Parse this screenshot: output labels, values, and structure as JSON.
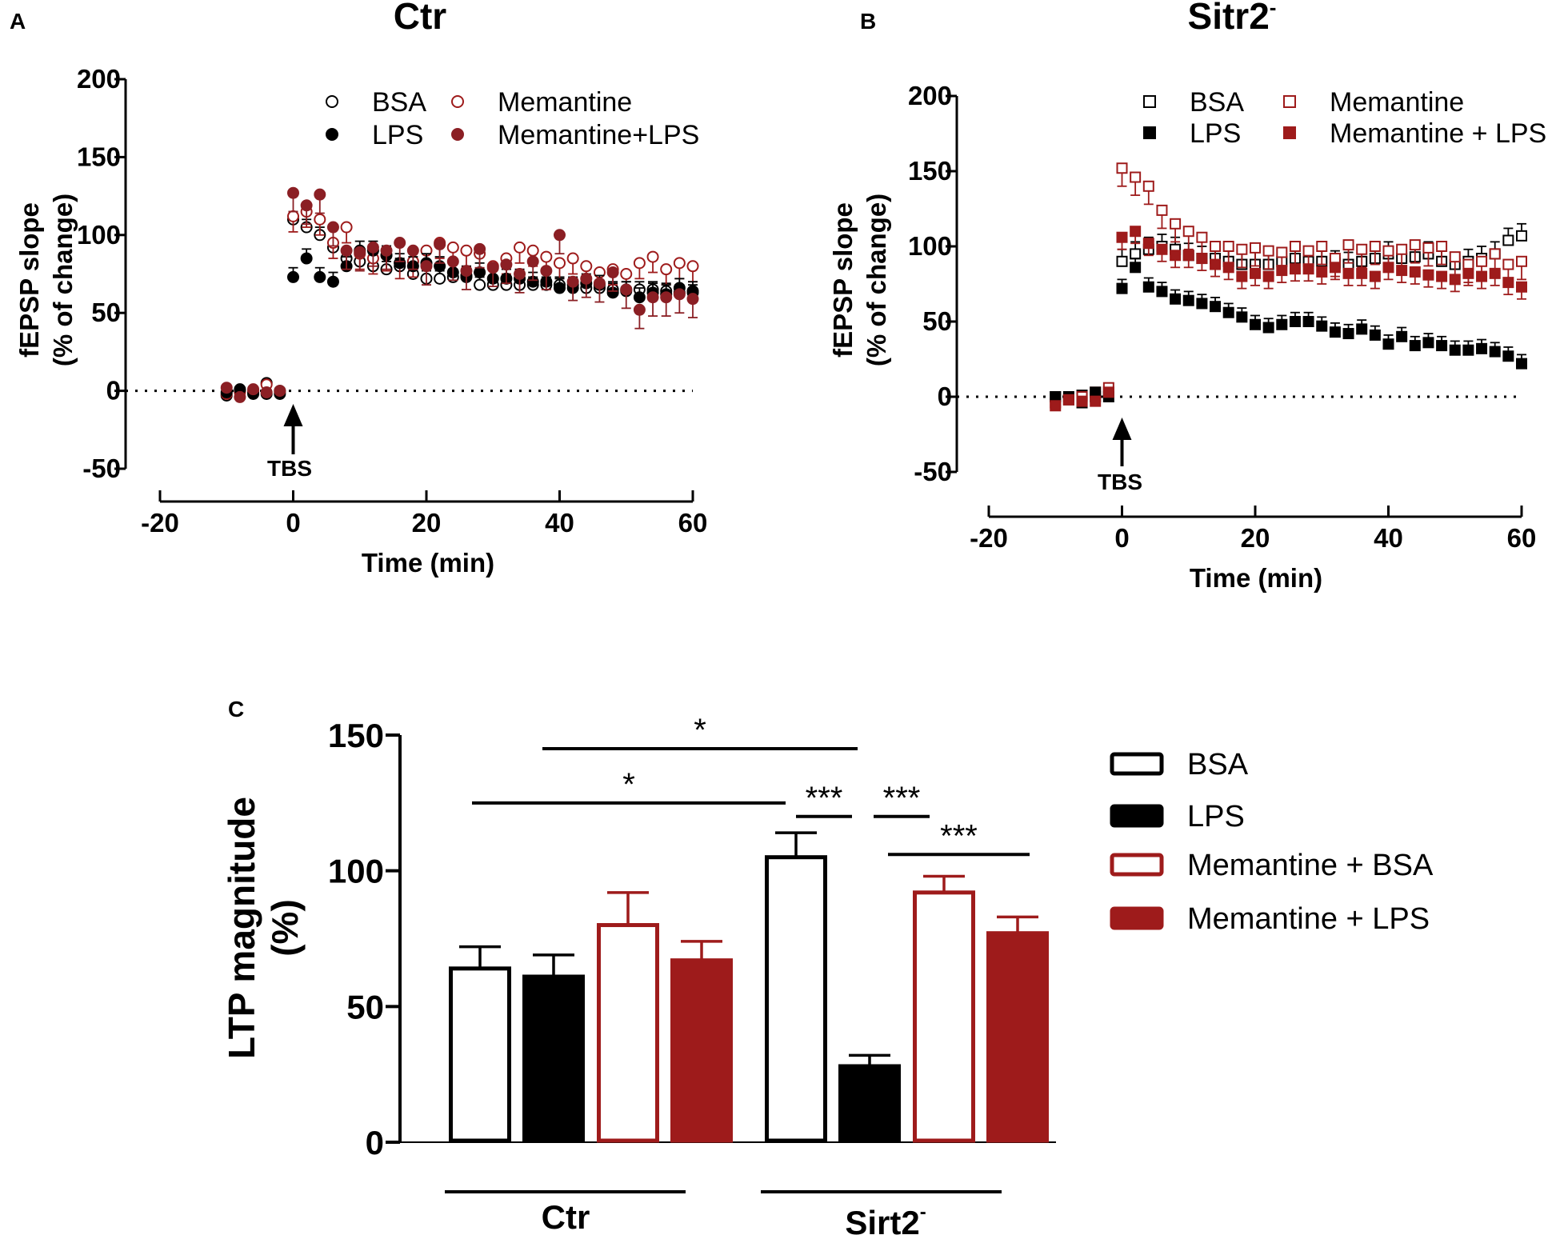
{
  "colors": {
    "black": "#000000",
    "red": "#9e1b1b",
    "darkred": "#8b1f24"
  },
  "panels": {
    "A": {
      "letter": "A",
      "title": "Ctr",
      "arrow_label": "TBS"
    },
    "B": {
      "letter": "B",
      "title": "Sitr2",
      "title_sup": "-",
      "arrow_label": "TBS"
    },
    "C": {
      "letter": "C"
    }
  },
  "chart_data": [
    {
      "id": "A",
      "type": "scatter",
      "title": "Ctr",
      "xlabel": "Time (min)",
      "ylabel": [
        "fEPSP slope",
        "(% of change)"
      ],
      "xlim": [
        -20,
        60
      ],
      "ylim": [
        -50,
        200
      ],
      "xticks": [
        -20,
        0,
        20,
        40,
        60
      ],
      "yticks": [
        -50,
        0,
        50,
        100,
        150,
        200
      ],
      "marker": "circle",
      "annotation": {
        "text": "TBS",
        "x": 0
      },
      "legend": [
        "BSA",
        "Memantine",
        "LPS",
        "Memantine+LPS"
      ],
      "series": [
        {
          "name": "BSA",
          "color": "black",
          "filled": false,
          "x": [
            -10,
            -8,
            -6,
            -4,
            -2,
            0,
            2,
            4,
            6,
            8,
            10,
            12,
            14,
            16,
            18,
            20,
            22,
            24,
            26,
            28,
            30,
            32,
            34,
            36,
            38,
            40,
            42,
            44,
            46,
            48,
            50,
            52,
            54,
            56,
            58,
            60
          ],
          "y": [
            -3,
            0,
            -1,
            5,
            0,
            110,
            105,
            100,
            92,
            85,
            83,
            80,
            78,
            80,
            75,
            72,
            72,
            73,
            73,
            68,
            68,
            68,
            68,
            68,
            68,
            68,
            68,
            66,
            66,
            65,
            65,
            65,
            65,
            64,
            63,
            63
          ],
          "err": 5
        },
        {
          "name": "Memantine",
          "color": "red",
          "filled": false,
          "x": [
            -10,
            -8,
            -6,
            -4,
            -2,
            0,
            2,
            4,
            6,
            8,
            10,
            12,
            14,
            16,
            18,
            20,
            22,
            24,
            26,
            28,
            30,
            32,
            34,
            36,
            38,
            40,
            42,
            44,
            46,
            48,
            50,
            52,
            54,
            56,
            58,
            60
          ],
          "y": [
            -2,
            -1,
            0,
            4,
            -1,
            112,
            115,
            110,
            95,
            105,
            88,
            85,
            87,
            82,
            83,
            90,
            95,
            92,
            90,
            88,
            80,
            85,
            92,
            90,
            86,
            82,
            85,
            80,
            76,
            78,
            75,
            82,
            86,
            78,
            82,
            80
          ],
          "err": 10
        },
        {
          "name": "LPS",
          "color": "black",
          "filled": true,
          "x": [
            -10,
            -8,
            -6,
            -4,
            -2,
            0,
            2,
            4,
            6,
            8,
            10,
            12,
            14,
            16,
            18,
            20,
            22,
            24,
            26,
            28,
            30,
            32,
            34,
            36,
            38,
            40,
            42,
            44,
            46,
            48,
            50,
            52,
            54,
            56,
            58,
            60
          ],
          "y": [
            -1,
            1,
            -2,
            -2,
            -2,
            73,
            85,
            73,
            70,
            80,
            90,
            90,
            87,
            82,
            80,
            82,
            80,
            76,
            74,
            76,
            72,
            72,
            72,
            70,
            70,
            66,
            66,
            69,
            68,
            63,
            64,
            60,
            63,
            62,
            66,
            64
          ],
          "err": 6
        },
        {
          "name": "Memantine+LPS",
          "color": "darkred",
          "filled": true,
          "x": [
            -10,
            -8,
            -6,
            -4,
            -2,
            0,
            2,
            4,
            6,
            8,
            10,
            12,
            14,
            16,
            18,
            20,
            22,
            24,
            26,
            28,
            30,
            32,
            34,
            36,
            38,
            40,
            42,
            44,
            46,
            48,
            50,
            52,
            54,
            56,
            58,
            60
          ],
          "y": [
            2,
            -4,
            1,
            -1,
            0,
            127,
            119,
            126,
            105,
            90,
            89,
            92,
            90,
            95,
            90,
            80,
            94,
            83,
            77,
            91,
            79,
            81,
            75,
            83,
            77,
            100,
            70,
            72,
            69,
            76,
            65,
            52,
            60,
            60,
            62,
            59
          ],
          "err": 12
        }
      ]
    },
    {
      "id": "B",
      "type": "scatter",
      "title": "Sitr2-",
      "xlabel": "Time (min)",
      "ylabel": [
        "fEPSP slope",
        "(% of change)"
      ],
      "xlim": [
        -20,
        60
      ],
      "ylim": [
        -50,
        200
      ],
      "xticks": [
        -20,
        0,
        20,
        40,
        60
      ],
      "yticks": [
        -50,
        0,
        50,
        100,
        150,
        200
      ],
      "marker": "square",
      "annotation": {
        "text": "TBS",
        "x": 0
      },
      "legend": [
        "BSA",
        "Memantine",
        "LPS",
        "Memantine + LPS"
      ],
      "series": [
        {
          "name": "BSA",
          "color": "black",
          "filled": false,
          "x": [
            -10,
            -8,
            -6,
            -4,
            -2,
            0,
            2,
            4,
            6,
            8,
            10,
            12,
            14,
            16,
            18,
            20,
            22,
            24,
            26,
            28,
            30,
            32,
            34,
            36,
            38,
            40,
            42,
            44,
            46,
            48,
            50,
            52,
            54,
            56,
            58,
            60
          ],
          "y": [
            0,
            -2,
            1,
            0,
            3,
            90,
            95,
            98,
            100,
            98,
            94,
            92,
            92,
            90,
            88,
            88,
            88,
            90,
            92,
            90,
            90,
            89,
            88,
            90,
            92,
            95,
            92,
            93,
            95,
            90,
            88,
            90,
            92,
            95,
            104,
            107
          ],
          "err": 8
        },
        {
          "name": "Memantine",
          "color": "red",
          "filled": false,
          "x": [
            -10,
            -8,
            -6,
            -4,
            -2,
            0,
            2,
            4,
            6,
            8,
            10,
            12,
            14,
            16,
            18,
            20,
            22,
            24,
            26,
            28,
            30,
            32,
            34,
            36,
            38,
            40,
            42,
            44,
            46,
            48,
            50,
            52,
            54,
            56,
            58,
            60
          ],
          "y": [
            -4,
            -2,
            0,
            3,
            6,
            152,
            146,
            140,
            124,
            115,
            110,
            106,
            100,
            100,
            98,
            99,
            97,
            96,
            100,
            97,
            100,
            92,
            101,
            98,
            100,
            97,
            98,
            101,
            99,
            100,
            93,
            88,
            90,
            95,
            88,
            90
          ],
          "err": 12
        },
        {
          "name": "LPS",
          "color": "black",
          "filled": true,
          "x": [
            -10,
            -8,
            -6,
            -4,
            -2,
            0,
            2,
            4,
            6,
            8,
            10,
            12,
            14,
            16,
            18,
            20,
            22,
            24,
            26,
            28,
            30,
            32,
            34,
            36,
            38,
            40,
            42,
            44,
            46,
            48,
            50,
            52,
            54,
            56,
            58,
            60
          ],
          "y": [
            0,
            0,
            -4,
            3,
            0,
            72,
            86,
            73,
            70,
            65,
            64,
            62,
            60,
            56,
            53,
            48,
            46,
            48,
            50,
            50,
            47,
            43,
            42,
            45,
            41,
            35,
            40,
            34,
            36,
            34,
            31,
            31,
            32,
            30,
            27,
            22
          ],
          "err": 6
        },
        {
          "name": "Memantine + LPS",
          "color": "red",
          "filled": true,
          "x": [
            -10,
            -8,
            -6,
            -4,
            -2,
            0,
            2,
            4,
            6,
            8,
            10,
            12,
            14,
            16,
            18,
            20,
            22,
            24,
            26,
            28,
            30,
            32,
            34,
            36,
            38,
            40,
            42,
            44,
            46,
            48,
            50,
            52,
            54,
            56,
            58,
            60
          ],
          "y": [
            -6,
            -2,
            -3,
            -3,
            3,
            106,
            110,
            102,
            98,
            94,
            94,
            92,
            88,
            86,
            80,
            82,
            80,
            84,
            85,
            85,
            83,
            86,
            82,
            82,
            80,
            86,
            84,
            83,
            81,
            80,
            78,
            82,
            80,
            82,
            76,
            73
          ],
          "err": 8
        }
      ]
    },
    {
      "id": "C",
      "type": "bar",
      "ylabel": [
        "LTP magnitude",
        "(%)"
      ],
      "ylim": [
        0,
        150
      ],
      "yticks": [
        0,
        50,
        100,
        150
      ],
      "groups": [
        {
          "label": "Ctr",
          "sup": ""
        },
        {
          "label": "Sirt2",
          "sup": "-"
        }
      ],
      "legend": [
        "BSA",
        "LPS",
        "Memantine + BSA",
        "Memantine + LPS"
      ],
      "series": [
        {
          "name": "BSA",
          "color": "black",
          "filled": false,
          "values": [
            64,
            105
          ],
          "err": [
            8,
            9
          ]
        },
        {
          "name": "LPS",
          "color": "black",
          "filled": true,
          "values": [
            61,
            28
          ],
          "err": [
            8,
            4
          ]
        },
        {
          "name": "Memantine + BSA",
          "color": "red",
          "filled": false,
          "values": [
            80,
            92
          ],
          "err": [
            12,
            6
          ]
        },
        {
          "name": "Memantine + LPS",
          "color": "red",
          "filled": true,
          "values": [
            67,
            77
          ],
          "err": [
            7,
            6
          ]
        }
      ],
      "significance": [
        {
          "label": "*",
          "from": [
            0,
            1
          ],
          "to": [
            1,
            0
          ],
          "y": 145
        },
        {
          "label": "*",
          "from": [
            0,
            0
          ],
          "to": [
            1,
            0
          ],
          "y": 125
        },
        {
          "label": "***",
          "from": [
            1,
            0
          ],
          "to": [
            1,
            1
          ],
          "y": 120
        },
        {
          "label": "***",
          "from": [
            1,
            1
          ],
          "to": [
            1,
            2
          ],
          "y": 120
        },
        {
          "label": "***",
          "from": [
            1,
            2
          ],
          "to": [
            1,
            3
          ],
          "y": 106
        }
      ]
    }
  ]
}
